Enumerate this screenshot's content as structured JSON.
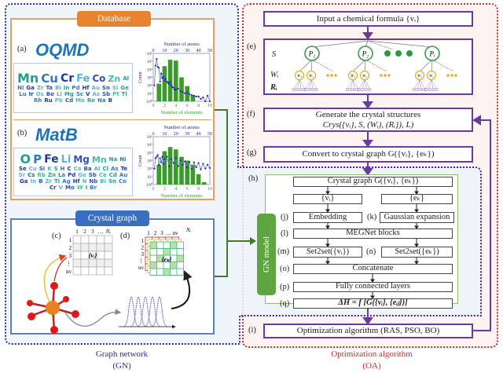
{
  "database": {
    "title": "Database",
    "panel_a": "(a)",
    "panel_b": "(b)",
    "oqmd_logo": "OQMD",
    "matb_logo": "MatB",
    "oqmd_elements": [
      "Mn",
      "Cu",
      "Cr",
      "Fe",
      "Co",
      "Zn",
      "Al",
      "Ni",
      "Ga",
      "Zr",
      "Ta",
      "Bi",
      "In",
      "Pd",
      "Hf",
      "Au",
      "Sn",
      "Si",
      "Ge",
      "Lu",
      "Ir",
      "Os",
      "Be",
      "Li",
      "Mg",
      "Sc",
      "V",
      "As",
      "Sb",
      "Pt",
      "Ti",
      "Rh",
      "Ru",
      "Pb",
      "Cd",
      "Mo",
      "Re",
      "Na",
      "B"
    ],
    "matb_elements": [
      "O",
      "P",
      "Fe",
      "Li",
      "Mg",
      "Mn",
      "Na",
      "Ni",
      "Se",
      "Cu",
      "Si",
      "K",
      "S",
      "H",
      "C",
      "Ca",
      "Ba",
      "Al",
      "Cl",
      "As",
      "Te",
      "Sr",
      "Cs",
      "Rb",
      "Zn",
      "La",
      "Pd",
      "Ge",
      "Sb",
      "Ce",
      "Cd",
      "Au",
      "Ga",
      "In",
      "B",
      "Zr",
      "Ti",
      "Ag",
      "Hf",
      "N",
      "Nb",
      "Bi",
      "Sn",
      "Co",
      "Cr",
      "V",
      "Mo",
      "W",
      "I",
      "Br"
    ]
  },
  "chart_data": [
    {
      "type": "bar",
      "panel": "(a)",
      "xlabel": "Number of elements",
      "ylabel": "Count",
      "top_xlabel": "Number of atoms",
      "x_ticks": [
        "0",
        "2",
        "4",
        "6",
        "8",
        "10"
      ],
      "top_ticks": [
        "0",
        "10",
        "20",
        "30",
        "40",
        "50"
      ],
      "y_ticks": [
        "10⁰",
        "10¹",
        "10²",
        "10³",
        "10⁴",
        "10⁵",
        "10⁶"
      ],
      "yscale": "log",
      "ylim": [
        1,
        1000000
      ],
      "bars": {
        "x": [
          1,
          2,
          3,
          4,
          5,
          6,
          7
        ],
        "values": [
          160,
          25000,
          160000,
          125000,
          1000,
          80,
          6
        ]
      },
      "atoms_series": {
        "x": [
          1,
          2,
          3,
          4,
          5,
          6,
          7,
          8,
          9,
          10,
          11,
          12,
          13,
          14,
          15,
          16,
          17,
          18,
          19,
          20,
          22,
          24,
          26,
          28,
          30,
          32,
          34,
          36,
          38,
          40,
          42,
          44,
          46,
          48,
          50
        ],
        "values": [
          100,
          30000,
          200000,
          20000,
          15000,
          300,
          3000,
          800,
          1000,
          400,
          600,
          300,
          200,
          150,
          250,
          100,
          60,
          50,
          30,
          30,
          40,
          20,
          15,
          10,
          12,
          8,
          6,
          5,
          4,
          4,
          2,
          3,
          1,
          5,
          1
        ]
      }
    },
    {
      "type": "bar",
      "panel": "(b)",
      "xlabel": "Number of elements",
      "ylabel": "Count",
      "top_xlabel": "Number of atoms",
      "x_ticks": [
        "0",
        "2",
        "4",
        "6",
        "8",
        "10"
      ],
      "top_ticks": [
        "0",
        "10",
        "20",
        "30",
        "40",
        "50"
      ],
      "y_ticks": [
        "10⁰",
        "10¹",
        "10²",
        "10³",
        "10⁴",
        "10⁵",
        "10⁶"
      ],
      "yscale": "log",
      "ylim": [
        1,
        1000000
      ],
      "bars": {
        "x": [
          1,
          2,
          3,
          4,
          5,
          6,
          7,
          8,
          9
        ],
        "values": [
          300,
          15000,
          50000,
          25000,
          3000,
          1000,
          300,
          20,
          2
        ]
      },
      "atoms_series": {
        "x": [
          1,
          2,
          3,
          4,
          5,
          6,
          7,
          8,
          9,
          10,
          12,
          14,
          16,
          18,
          20,
          22,
          24,
          26,
          28,
          30,
          32,
          34,
          36,
          38,
          40,
          42,
          44,
          46,
          48,
          50
        ],
        "values": [
          100,
          2000,
          3000,
          5000,
          300,
          2000,
          600,
          3000,
          400,
          1500,
          3000,
          200,
          1500,
          500,
          2000,
          200,
          1000,
          300,
          800,
          150,
          700,
          100,
          600,
          150,
          500,
          80,
          400,
          100,
          300,
          120
        ]
      }
    }
  ],
  "crystal_graph": {
    "title": "Crystal graph",
    "panel_c": "(c)",
    "panel_d": "(d)",
    "c_cols": [
      "1",
      "2",
      "3",
      "…",
      "Nᵥ"
    ],
    "c_rows": [
      "1",
      "2",
      "3",
      "⋮",
      "nv"
    ],
    "c_label": "{vᵢ}",
    "d_cols": [
      "1",
      "2",
      "3",
      "…",
      "nv"
    ],
    "d_rows": [
      "1",
      "2",
      "3",
      "⋮",
      "nv"
    ],
    "d_depth": "Nₑ",
    "d_label": "{eₖ}"
  },
  "gn_caption": {
    "line1": "Graph network",
    "line2": "(GN)"
  },
  "oa_caption": {
    "line1": "Optimization algorithm",
    "line2": "(OA)"
  },
  "flow": {
    "input": "Input a chemical formula {vᵢ}",
    "e_label": "(e)",
    "e_S": "S",
    "e_W": "Wᵢ",
    "e_R": "Rᵢ",
    "p1": "P₁",
    "p2": "P₂",
    "pi": "Pᵢ",
    "w1": "W₁",
    "w2": "W₂",
    "f_label": "(f)",
    "f_line1": "Generate the crystal structures",
    "f_line2": "Crys({vᵢ}, S, (Wᵢ), (Rᵢ}), L)",
    "g_label": "(g)",
    "g_text": "Convert to crystal graph G({vᵢ}, {eₖ})",
    "h_label": "(h)",
    "gn_model": "GN model",
    "h_graph": "Crystal graph G({vᵢ}, {eₖ})",
    "h_v": "{vᵢ}",
    "h_e": "{eₖ}",
    "j_label": "(j)",
    "j_text": "Embedding",
    "k_label": "(k)",
    "k_text": "Gaussian expansion",
    "l_label": "(l)",
    "l_text": "MEGNet blocks",
    "m_label": "(m)",
    "m_text": "Set2set({vᵢ})",
    "n_label": "(n)",
    "n_text": "Set2set({eₖ})",
    "o_label": "(o)",
    "o_text": "Concatenate",
    "p_label": "(p)",
    "p_text": "Fully connected layers",
    "q_label": "(q)",
    "q_text": "ΔH = f [G({vᵢ}, {eᵢⱼ})]",
    "i_label": "(i)",
    "i_text": "Optimization algorithm (RAS, PSO, BO)"
  },
  "colors": {
    "gn_border": "#2a2aa8",
    "oa_border": "#d42a2a",
    "database": "#e8832f",
    "crystal": "#3a6fbf",
    "gn_model": "#5ea440",
    "flow": "#6a3aa0",
    "bars": "#3a9a2a",
    "points": "#2222aa"
  }
}
